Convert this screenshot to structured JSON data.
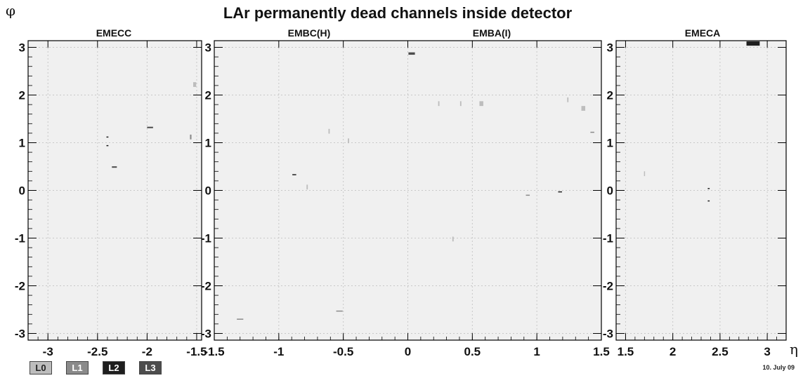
{
  "page_title": "LAr permanently dead channels inside detector",
  "y_axis_symbol": "φ",
  "x_axis_symbol": "η",
  "date": "10. July 09",
  "legend": [
    {
      "label": "L0",
      "color": "#bdbdbd",
      "text_color": "#222222"
    },
    {
      "label": "L1",
      "color": "#8a8a8a",
      "text_color": "#ffffff"
    },
    {
      "label": "L2",
      "color": "#1e1e1e",
      "text_color": "#ffffff"
    },
    {
      "label": "L3",
      "color": "#4d4d4d",
      "text_color": "#ffffff"
    }
  ],
  "chart_data": [
    {
      "type": "scatter",
      "panel_titles": [
        "EMECC"
      ],
      "xlim": [
        -3.2,
        -1.45
      ],
      "ylim": [
        -3.14,
        3.14
      ],
      "xticks": [
        "-3",
        "-2.5",
        "-2",
        "-1.5"
      ],
      "xtick_values": [
        -3,
        -2.5,
        -2,
        -1.5
      ],
      "yticks": [
        "-3",
        "-2",
        "-1",
        "0",
        "1",
        "2",
        "3"
      ],
      "grid": true,
      "cells": [
        {
          "x": -1.52,
          "y": 2.22,
          "w": 0.03,
          "h": 0.1,
          "layer": "L0"
        },
        {
          "x": -2.4,
          "y": 1.12,
          "w": 0.02,
          "h": 0.02,
          "layer": "L2"
        },
        {
          "x": -2.4,
          "y": 0.94,
          "w": 0.02,
          "h": 0.02,
          "layer": "L2"
        },
        {
          "x": -1.97,
          "y": 1.32,
          "w": 0.06,
          "h": 0.03,
          "layer": "L3"
        },
        {
          "x": -1.56,
          "y": 1.12,
          "w": 0.015,
          "h": 0.1,
          "layer": "L1"
        },
        {
          "x": -2.33,
          "y": 0.49,
          "w": 0.05,
          "h": 0.03,
          "layer": "L3"
        }
      ]
    },
    {
      "type": "scatter",
      "panel_titles": [
        "EMBC(H)",
        "EMBA(I)"
      ],
      "xlim": [
        -1.5,
        1.5
      ],
      "ylim": [
        -3.14,
        3.14
      ],
      "xticks": [
        "-1.5",
        "-1",
        "-0.5",
        "0",
        "0.5",
        "1",
        "1.5"
      ],
      "xtick_values": [
        -1.5,
        -1,
        -0.5,
        0,
        0.5,
        1,
        1.5
      ],
      "yticks": [
        "-3",
        "-2",
        "-1",
        "0",
        "1",
        "2",
        "3"
      ],
      "grid": true,
      "cells": [
        {
          "x": 0.03,
          "y": 2.87,
          "w": 0.05,
          "h": 0.05,
          "layer": "L3"
        },
        {
          "x": 0.24,
          "y": 1.82,
          "w": 0.01,
          "h": 0.1,
          "layer": "L0"
        },
        {
          "x": 0.41,
          "y": 1.82,
          "w": 0.01,
          "h": 0.1,
          "layer": "L0"
        },
        {
          "x": 0.57,
          "y": 1.82,
          "w": 0.03,
          "h": 0.1,
          "layer": "L0"
        },
        {
          "x": 1.24,
          "y": 1.9,
          "w": 0.01,
          "h": 0.1,
          "layer": "L0"
        },
        {
          "x": 1.36,
          "y": 1.72,
          "w": 0.03,
          "h": 0.1,
          "layer": "L0"
        },
        {
          "x": 1.43,
          "y": 1.22,
          "w": 0.03,
          "h": 0.02,
          "layer": "L1"
        },
        {
          "x": -0.61,
          "y": 1.24,
          "w": 0.01,
          "h": 0.1,
          "layer": "L0"
        },
        {
          "x": -0.46,
          "y": 1.04,
          "w": 0.01,
          "h": 0.1,
          "layer": "L0"
        },
        {
          "x": -0.88,
          "y": 0.33,
          "w": 0.03,
          "h": 0.02,
          "layer": "L2"
        },
        {
          "x": -0.78,
          "y": 0.07,
          "w": 0.01,
          "h": 0.1,
          "layer": "L0"
        },
        {
          "x": 0.93,
          "y": -0.1,
          "w": 0.03,
          "h": 0.02,
          "layer": "L1"
        },
        {
          "x": 1.18,
          "y": -0.03,
          "w": 0.03,
          "h": 0.02,
          "layer": "L2"
        },
        {
          "x": 0.35,
          "y": -1.02,
          "w": 0.01,
          "h": 0.1,
          "layer": "L0"
        },
        {
          "x": -1.3,
          "y": -2.7,
          "w": 0.05,
          "h": 0.02,
          "layer": "L1"
        },
        {
          "x": -0.53,
          "y": -2.53,
          "w": 0.05,
          "h": 0.02,
          "layer": "L1"
        }
      ]
    },
    {
      "type": "scatter",
      "panel_titles": [
        "EMECA"
      ],
      "xlim": [
        1.4,
        3.2
      ],
      "ylim": [
        -3.14,
        3.14
      ],
      "xticks": [
        "1.5",
        "2",
        "2.5",
        "3"
      ],
      "xtick_values": [
        1.5,
        2,
        2.5,
        3
      ],
      "yticks": [
        "-3",
        "-2",
        "-1",
        "0",
        "1",
        "2",
        "3"
      ],
      "grid": true,
      "cells": [
        {
          "x": 2.85,
          "y": 3.08,
          "w": 0.14,
          "h": 0.09,
          "layer": "L2"
        },
        {
          "x": 1.7,
          "y": 0.35,
          "w": 0.01,
          "h": 0.1,
          "layer": "L0"
        },
        {
          "x": 2.38,
          "y": 0.04,
          "w": 0.02,
          "h": 0.02,
          "layer": "L2"
        },
        {
          "x": 2.38,
          "y": -0.22,
          "w": 0.02,
          "h": 0.02,
          "layer": "L2"
        }
      ]
    }
  ]
}
